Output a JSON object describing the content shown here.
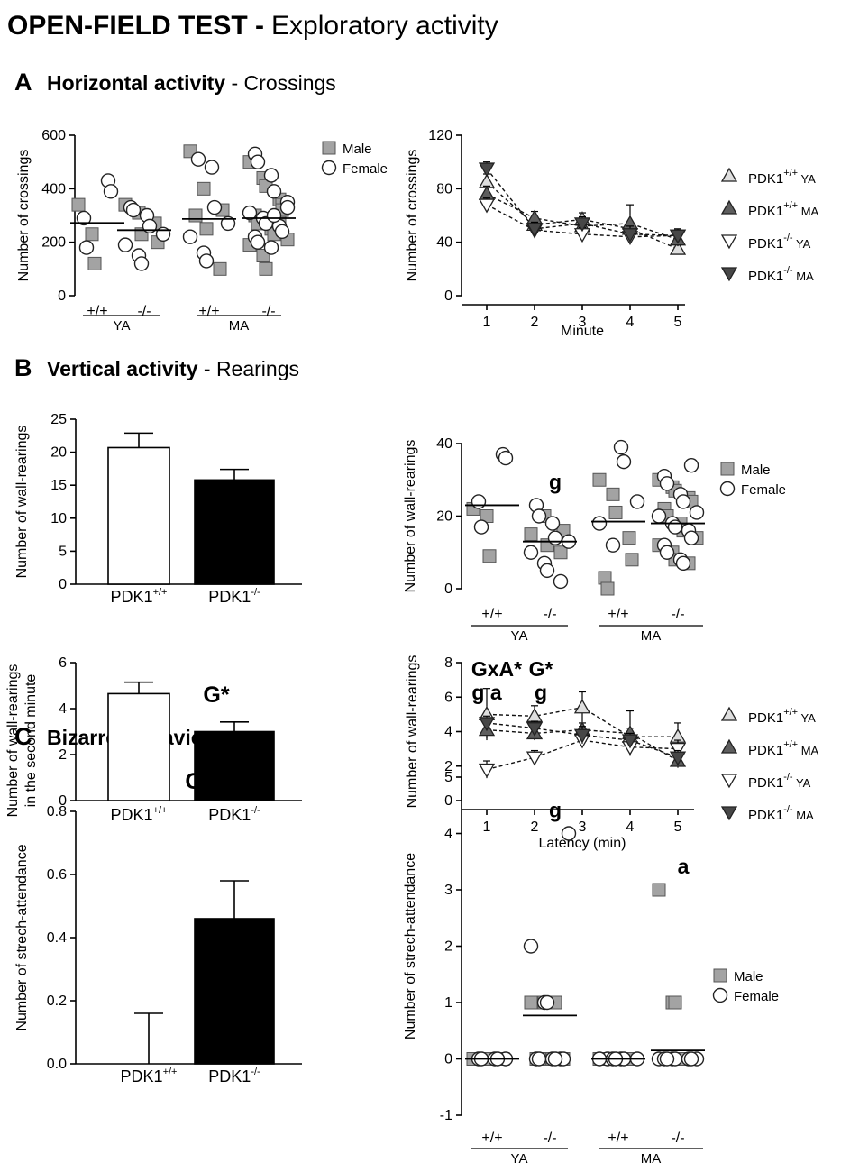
{
  "header": {
    "title_bold": "OPEN-FIELD TEST -",
    "title_rest": "Exploratory activity"
  },
  "sections": {
    "A": {
      "letter": "A",
      "title_bold": "Horizontal activity",
      "title_rest": " - Crossings"
    },
    "B": {
      "letter": "B",
      "title_bold": "Vertical activity",
      "title_rest": " - Rearings"
    },
    "C": {
      "letter": "C",
      "title_bold": "Bizarre Behavior",
      "title_rest": ""
    }
  },
  "colors": {
    "male": "#a3a3a3",
    "female": "#ffffff",
    "wt": "#ffffff",
    "ko": "#000000",
    "wt_ya": "#dedede",
    "wt_ma": "#5e5e5e",
    "ko_ya": "#ffffff",
    "ko_ma": "#474747"
  },
  "chart_data": [
    {
      "id": "A-left",
      "type": "scatter",
      "ylabel": "Number of crossings",
      "ylim": [
        0,
        600
      ],
      "yticks": [
        "0",
        "200",
        "400",
        "600"
      ],
      "groups": [
        "+/+",
        "-/-",
        "+/+",
        "-/-"
      ],
      "age_groups": [
        "YA",
        "MA"
      ],
      "legend": [
        "Male",
        "Female"
      ],
      "means": [
        272,
        245,
        287,
        290
      ],
      "male": [
        [
          340,
          230,
          120
        ],
        [
          340,
          310,
          230,
          270,
          200
        ],
        [
          540,
          400,
          250,
          100,
          320,
          300
        ],
        [
          500,
          440,
          410,
          360,
          340,
          300,
          270,
          250,
          230,
          210,
          190,
          150,
          100,
          280,
          320
        ]
      ],
      "female": [
        [
          430,
          390,
          290,
          180
        ],
        [
          330,
          320,
          300,
          260,
          230,
          190,
          150,
          120
        ],
        [
          510,
          480,
          330,
          270,
          220,
          160,
          130
        ],
        [
          530,
          500,
          450,
          390,
          350,
          310,
          290,
          270,
          260,
          240,
          220,
          200,
          180,
          300,
          330
        ]
      ]
    },
    {
      "id": "A-right",
      "type": "line",
      "xlabel": "Minute",
      "ylabel": "Number of crossings",
      "x": [
        1,
        2,
        3,
        4,
        5
      ],
      "ylim": [
        0,
        120
      ],
      "yticks": [
        "0",
        "40",
        "80",
        "120"
      ],
      "series": [
        {
          "name": "PDK1+/+ YA",
          "base": "PDK1",
          "sup": "+/+",
          "tag": "YA",
          "values": [
            85,
            53,
            57,
            50,
            35
          ],
          "err": [
            6,
            6,
            5,
            5,
            4
          ]
        },
        {
          "name": "PDK1+/+ MA",
          "base": "PDK1",
          "sup": "+/+",
          "tag": "MA",
          "values": [
            76,
            58,
            52,
            54,
            42
          ],
          "err": [
            6,
            5,
            6,
            14,
            5
          ]
        },
        {
          "name": "PDK1-/- YA",
          "base": "PDK1",
          "sup": "-/-",
          "tag": "YA",
          "values": [
            68,
            49,
            46,
            44,
            45
          ],
          "err": [
            5,
            5,
            5,
            5,
            4
          ]
        },
        {
          "name": "PDK1-/- MA",
          "base": "PDK1",
          "sup": "-/-",
          "tag": "MA",
          "values": [
            95,
            50,
            54,
            46,
            45
          ],
          "err": [
            5,
            5,
            5,
            6,
            5
          ]
        }
      ]
    },
    {
      "id": "B-bar1",
      "type": "bar",
      "ylabel": "Number of wall-rearings",
      "ylim": [
        0,
        25
      ],
      "yticks": [
        "0",
        "5",
        "10",
        "15",
        "20",
        "25"
      ],
      "categories": [
        {
          "base": "PDK1",
          "sup": "+/+"
        },
        {
          "base": "PDK1",
          "sup": "-/-"
        }
      ],
      "values": [
        20.7,
        15.8
      ],
      "err": [
        2.2,
        1.6
      ],
      "annotation": ""
    },
    {
      "id": "B-scatter",
      "type": "scatter",
      "ylabel": "Number of wall-rearings",
      "ylim": [
        0,
        40
      ],
      "yticks": [
        "0",
        "20",
        "40"
      ],
      "groups": [
        "+/+",
        "-/-",
        "+/+",
        "-/-"
      ],
      "age_groups": [
        "YA",
        "MA"
      ],
      "legend": [
        "Male",
        "Female"
      ],
      "annotations": [
        "",
        "g",
        "",
        ""
      ],
      "means": [
        23,
        13,
        18.5,
        18
      ],
      "male": [
        [
          22,
          20,
          9
        ],
        [
          15,
          20,
          12,
          10,
          16
        ],
        [
          30,
          26,
          21,
          14,
          8,
          3,
          0
        ],
        [
          30,
          28,
          27,
          25,
          24,
          22,
          20,
          18,
          16,
          14,
          12,
          10,
          8,
          7
        ]
      ],
      "female": [
        [
          37,
          36,
          24,
          17
        ],
        [
          23,
          20,
          18,
          14,
          13,
          10,
          7,
          5,
          2
        ],
        [
          39,
          35,
          24,
          18,
          12
        ],
        [
          34,
          31,
          29,
          26,
          24,
          21,
          20,
          18,
          17,
          16,
          14,
          12,
          10,
          8,
          7
        ]
      ]
    },
    {
      "id": "B-bar2",
      "type": "bar",
      "ylabel": "Number of wall-rearings",
      "ylabel2": "in the second minute",
      "ylim": [
        0,
        6
      ],
      "yticks": [
        "0",
        "2",
        "4",
        "6"
      ],
      "categories": [
        {
          "base": "PDK1",
          "sup": "+/+"
        },
        {
          "base": "PDK1",
          "sup": "-/-"
        }
      ],
      "values": [
        4.65,
        3.0
      ],
      "err": [
        0.5,
        0.42
      ],
      "annotation": "G*"
    },
    {
      "id": "B-line",
      "type": "line",
      "xlabel": "Latency (min)",
      "ylabel": "Number of wall-rearings",
      "x": [
        1,
        2,
        3,
        4,
        5
      ],
      "ylim": [
        0,
        8
      ],
      "yticks": [
        "0",
        "2",
        "4",
        "6",
        "8"
      ],
      "annotations_top": [
        "GxA*",
        "G*"
      ],
      "annotations_bottom": [
        "g a",
        "g"
      ],
      "series": [
        {
          "name": "PDK1+/+ YA",
          "base": "PDK1",
          "sup": "+/+",
          "tag": "YA",
          "values": [
            5.0,
            4.9,
            5.4,
            3.7,
            3.7
          ],
          "err": [
            1.5,
            0.6,
            0.9,
            0.5,
            0.8
          ]
        },
        {
          "name": "PDK1+/+ MA",
          "base": "PDK1",
          "sup": "+/+",
          "tag": "MA",
          "values": [
            4.1,
            3.9,
            4.1,
            3.9,
            2.3
          ],
          "err": [
            0.5,
            0.4,
            0.4,
            1.3,
            0.4
          ]
        },
        {
          "name": "PDK1-/- YA",
          "base": "PDK1",
          "sup": "-/-",
          "tag": "YA",
          "values": [
            1.8,
            2.5,
            3.5,
            3.1,
            3.0
          ],
          "err": [
            0.5,
            0.4,
            0.4,
            0.5,
            0.5
          ]
        },
        {
          "name": "PDK1-/- MA",
          "base": "PDK1",
          "sup": "-/-",
          "tag": "MA",
          "values": [
            4.5,
            4.2,
            3.8,
            3.5,
            2.5
          ],
          "err": [
            0.4,
            0.4,
            0.5,
            0.4,
            0.4
          ]
        }
      ]
    },
    {
      "id": "C-bar",
      "type": "bar",
      "ylabel": "Number of strech-attendance",
      "ylim": [
        0,
        0.8
      ],
      "yticks": [
        "0.0",
        "0.2",
        "0.4",
        "0.6",
        "0.8"
      ],
      "categories": [
        {
          "base": "PDK1",
          "sup": "+/+"
        },
        {
          "base": "PDK1",
          "sup": "-/-"
        }
      ],
      "values": [
        0.0,
        0.46
      ],
      "err": [
        0.16,
        0.12
      ],
      "annotation": "G*"
    },
    {
      "id": "C-scatter",
      "type": "scatter",
      "ylabel": "Number of strech-attendance",
      "ylim": [
        -1,
        5
      ],
      "yticks": [
        "-1",
        "0",
        "1",
        "2",
        "3",
        "4",
        "5"
      ],
      "groups": [
        "+/+",
        "-/-",
        "+/+",
        "-/-"
      ],
      "age_groups": [
        "YA",
        "MA"
      ],
      "legend": [
        "Male",
        "Female"
      ],
      "annotations": [
        "",
        "g",
        "",
        "a"
      ],
      "means": [
        0,
        0.77,
        0,
        0.15
      ],
      "male": [
        [
          0,
          0,
          0,
          0
        ],
        [
          1,
          1,
          0,
          0,
          0,
          0,
          0,
          0,
          1
        ],
        [
          0,
          0,
          0,
          0,
          0,
          0
        ],
        [
          3,
          1,
          1,
          0,
          0,
          0,
          0,
          0,
          0
        ]
      ],
      "female": [
        [
          0,
          0,
          0,
          0,
          0
        ],
        [
          4,
          2,
          1,
          1,
          0,
          0,
          0,
          0,
          0,
          0
        ],
        [
          0,
          0,
          0,
          0,
          0,
          0,
          0
        ],
        [
          0,
          0,
          0,
          0,
          0,
          0,
          0,
          0
        ]
      ]
    }
  ]
}
